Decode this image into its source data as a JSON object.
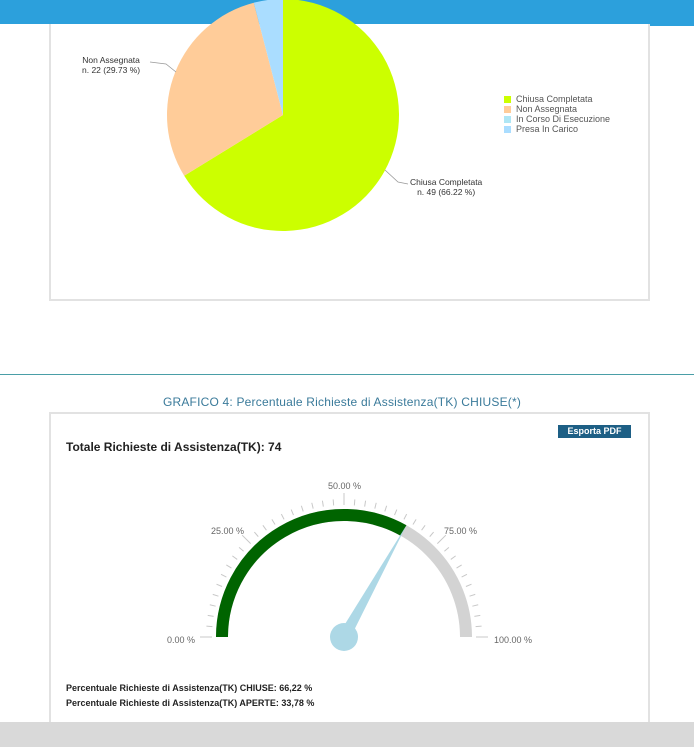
{
  "pie_chart": {
    "chart_data": {
      "type": "pie",
      "slices": [
        {
          "name": "Chiusa Completata",
          "count": 49,
          "percent": 66.22,
          "color": "#ccff00"
        },
        {
          "name": "Non Assegnata",
          "count": 22,
          "percent": 29.73,
          "color": "#ffcc99"
        },
        {
          "name": "In Corso Di Esecuzione",
          "count": 0,
          "percent": 0,
          "color": "#99ddf0"
        },
        {
          "name": "Presa In Carico",
          "count": 3,
          "percent": 4.05,
          "color": "#aaddff"
        }
      ]
    },
    "labels": {
      "non_assegnata_name": "Non Assegnata",
      "non_assegnata_value": "n. 22 (29.73 %)",
      "chiusa_name": "Chiusa Completata",
      "chiusa_value": "n. 49 (66.22 %)"
    },
    "legend": [
      {
        "label": "Chiusa Completata",
        "color": "#ccff00"
      },
      {
        "label": "Non Assegnata",
        "color": "#ffcc99"
      },
      {
        "label": "In Corso Di Esecuzione",
        "color": "#aee6f5"
      },
      {
        "label": "Presa In Carico",
        "color": "#aaddff"
      }
    ]
  },
  "section_title": "GRAFICO 4: Percentuale Richieste di Assistenza(TK) CHIUSE(*)",
  "export_button": "Esporta PDF",
  "total_label": "Totale Richieste di Assistenza(TK): 74",
  "gauge": {
    "chart_data": {
      "type": "gauge",
      "value": 66.22,
      "min": 0,
      "max": 100,
      "fill_color": "#006400",
      "track_color": "#d3d3d3",
      "needle_color": "#add8e6"
    },
    "tick_labels": [
      "0.00 %",
      "25.00 %",
      "50.00 %",
      "75.00 %",
      "100.00 %"
    ]
  },
  "stats": {
    "closed": "Percentuale Richieste di Assistenza(TK) CHIUSE: 66,22 %",
    "open": "Percentuale Richieste di Assistenza(TK) APERTE: 33,78 %"
  }
}
